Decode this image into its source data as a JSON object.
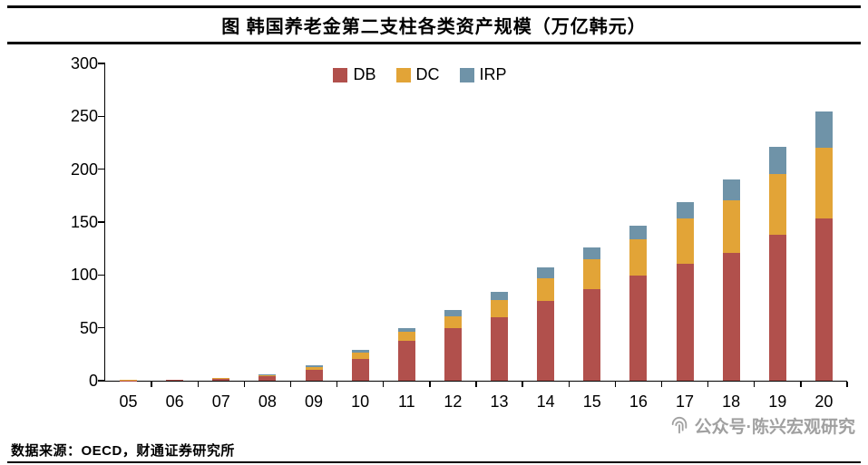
{
  "header": {
    "title": "图  韩国养老金第二支柱各类资产规模（万亿韩元）"
  },
  "footer": {
    "source": "数据来源：OECD，财通证券研究所"
  },
  "watermark": {
    "icon": "fingerprint-icon",
    "text": "公众号·陈兴宏观研究",
    "color": "#9b9b9b"
  },
  "chart_data": {
    "type": "bar",
    "stacked": true,
    "title": "韩国养老金第二支柱各类资产规模（万亿韩元）",
    "xlabel": "",
    "ylabel": "",
    "ylim": [
      0,
      300
    ],
    "yticks": [
      0,
      50,
      100,
      150,
      200,
      250,
      300
    ],
    "grid": false,
    "legend_position": "top",
    "categories": [
      "05",
      "06",
      "07",
      "08",
      "09",
      "10",
      "11",
      "12",
      "13",
      "14",
      "15",
      "16",
      "17",
      "18",
      "19",
      "20"
    ],
    "series": [
      {
        "name": "DB",
        "color": "#B1504C",
        "values": [
          0.4,
          0.6,
          1.8,
          3.9,
          10.0,
          21.0,
          38.0,
          50.0,
          60.0,
          75.6,
          86.3,
          99.6,
          110.9,
          121.2,
          138.0,
          153.3
        ]
      },
      {
        "name": "DC",
        "color": "#E2A437",
        "values": [
          0.2,
          0.3,
          0.6,
          1.3,
          2.6,
          5.4,
          8.1,
          11.2,
          15.9,
          21.3,
          28.4,
          34.2,
          42.3,
          49.7,
          57.8,
          67.2
        ]
      },
      {
        "name": "IRP",
        "color": "#6F93A8",
        "values": [
          0.1,
          0.2,
          0.4,
          0.8,
          1.6,
          2.9,
          3.9,
          5.8,
          8.1,
          10.2,
          11.7,
          13.2,
          15.3,
          19.2,
          25.4,
          34.4
        ]
      }
    ]
  }
}
